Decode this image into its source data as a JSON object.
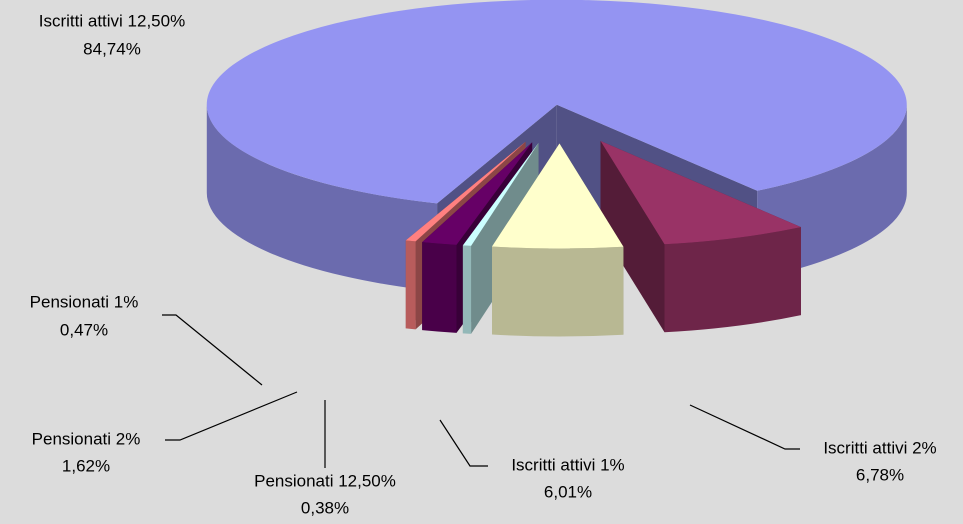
{
  "chart_data": {
    "type": "pie3d",
    "categories": [
      "Iscritti attivi 12,50%",
      "Iscritti attivi 2%",
      "Iscritti attivi 1%",
      "Pensionati 12,50%",
      "Pensionati 2%",
      "Pensionati 1%"
    ],
    "values": [
      84.74,
      6.78,
      6.01,
      0.38,
      1.62,
      0.47
    ],
    "value_labels": [
      "84,74%",
      "6,78%",
      "6,01%",
      "0,38%",
      "1,62%",
      "0,47%"
    ],
    "colors": [
      "#9494f2",
      "#993366",
      "#ffffcc",
      "#ccffff",
      "#660066",
      "#ff8080"
    ]
  }
}
